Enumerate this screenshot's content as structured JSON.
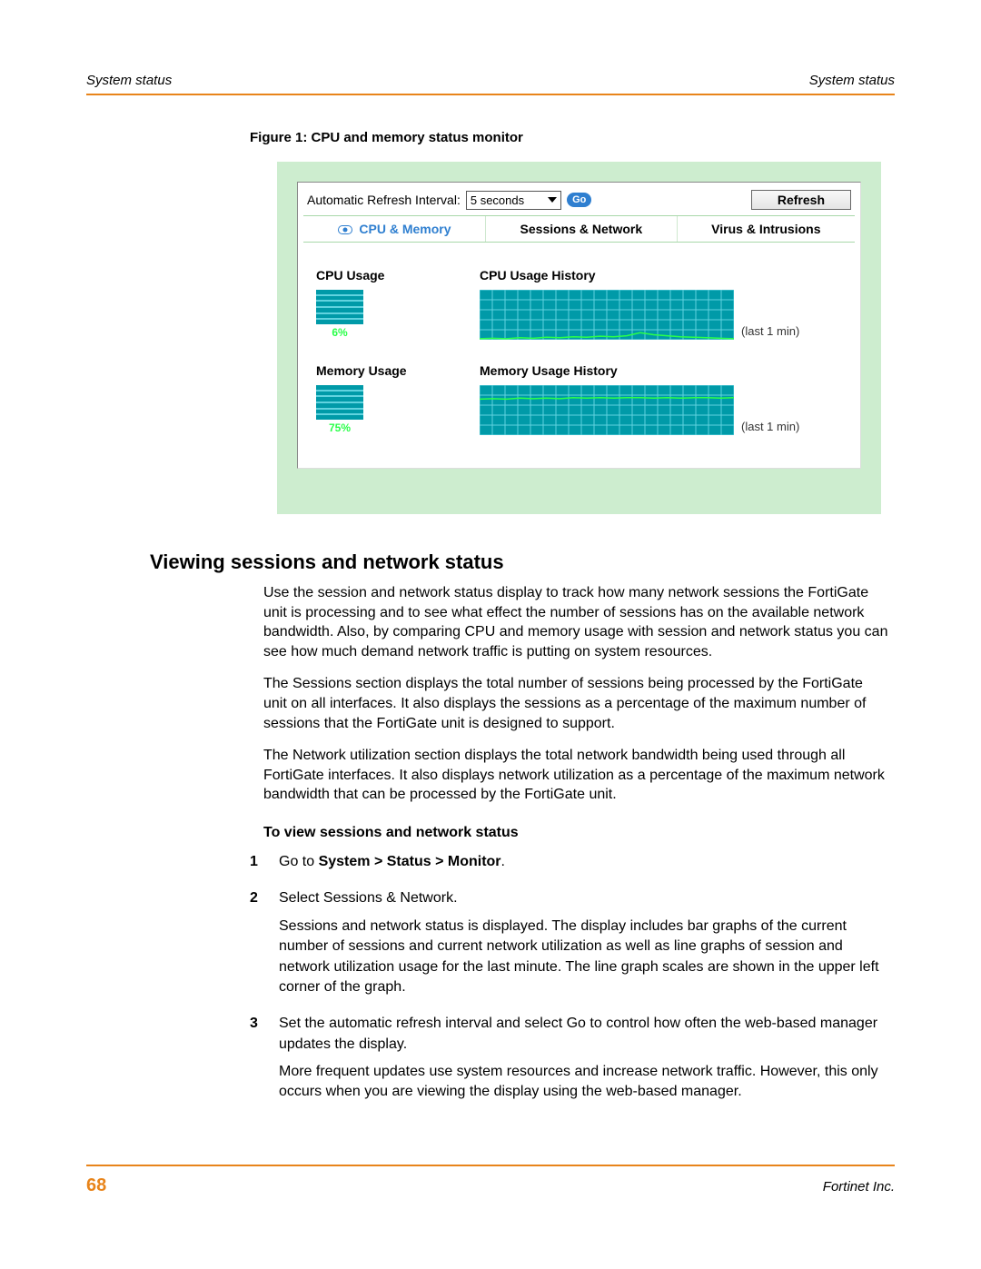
{
  "header": {
    "left": "System status",
    "right": "System status"
  },
  "figure_caption": "Figure 1:  CPU and memory status monitor",
  "monitor": {
    "refresh_label": "Automatic Refresh Interval:",
    "dropdown_value": "5 seconds",
    "go_label": "Go",
    "refresh_btn": "Refresh",
    "tabs": {
      "cpu": "CPU & Memory",
      "sessions": "Sessions & Network",
      "virus": "Virus & Intrusions"
    },
    "cpu": {
      "title": "CPU Usage",
      "value_pct": 6,
      "value_text": "6%",
      "history_title": "CPU Usage History",
      "history_last": "(last 1 min)",
      "history_points": [
        2,
        3,
        2,
        4,
        3,
        5,
        4,
        6,
        5,
        7,
        6,
        8,
        14,
        10,
        8,
        6,
        5,
        4,
        3,
        2
      ],
      "chart": {
        "bg": "#009aa8",
        "grid": "#61d3df",
        "line": "#2bff4a",
        "y_max": 100
      }
    },
    "mem": {
      "title": "Memory Usage",
      "value_pct": 75,
      "value_text": "75%",
      "history_title": "Memory Usage History",
      "history_last": "(last 1 min)",
      "history_points": [
        72,
        73,
        72,
        74,
        73,
        74,
        73,
        75,
        74,
        75,
        74,
        75,
        75,
        74,
        75,
        74,
        75,
        75,
        74,
        75
      ],
      "chart": {
        "bg": "#009aa8",
        "grid": "#61d3df",
        "line": "#2bff4a",
        "y_max": 100
      }
    }
  },
  "section_heading": "Viewing sessions and network status",
  "paragraphs": [
    "Use the session and network status display to track how many network sessions the FortiGate unit is processing and to see what effect the number of sessions has on the available network bandwidth. Also, by comparing CPU and memory usage with session and network status you can see how much demand network traffic is putting on system resources.",
    "The Sessions section displays the total number of sessions being processed by the FortiGate unit on all interfaces. It also displays the sessions as a percentage of the maximum number of sessions that the FortiGate unit is designed to support.",
    "The Network utilization section displays the total network bandwidth being used through all FortiGate interfaces. It also displays network utilization as a percentage of the maximum network bandwidth that can be processed by the FortiGate unit."
  ],
  "subheading": "To view sessions and network status",
  "steps": [
    {
      "num": "1",
      "lines": [
        "Go to <b>System > Status > Monitor</b>."
      ]
    },
    {
      "num": "2",
      "lines": [
        "Select Sessions & Network.",
        "Sessions and network status is displayed. The display includes bar graphs of the current number of sessions and current network utilization as well as line graphs of session and network utilization usage for the last minute. The line graph scales are shown in the upper left corner of the graph."
      ]
    },
    {
      "num": "3",
      "lines": [
        "Set the automatic refresh interval and select Go to control how often the web-based manager updates the display.",
        "More frequent updates use system resources and increase network traffic. However, this only occurs when you are viewing the display using the web-based manager."
      ]
    }
  ],
  "footer": {
    "page": "68",
    "company": "Fortinet Inc."
  },
  "colors": {
    "accent": "#e8841a",
    "link": "#2f7fd0"
  }
}
